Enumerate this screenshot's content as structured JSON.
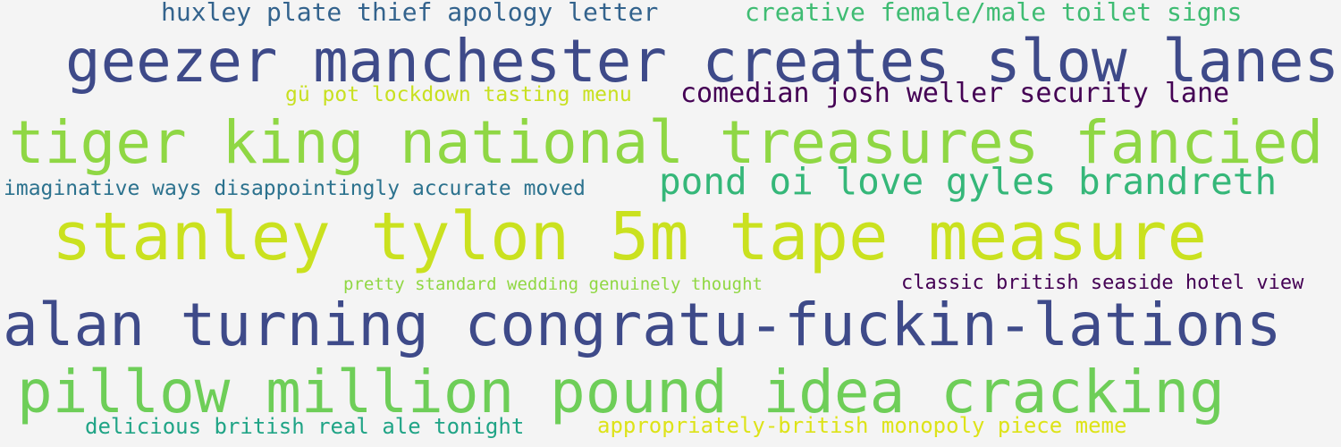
{
  "word_cloud": {
    "background": "#f4f4f4",
    "phrases": [
      {
        "id": "huxley",
        "text": "huxley plate thief apology letter",
        "color": "#33638d"
      },
      {
        "id": "creative",
        "text": "creative female/male toilet signs",
        "color": "#3fbc73"
      },
      {
        "id": "geezer",
        "text": "geezer manchester creates slow lanes",
        "color": "#3e4a89"
      },
      {
        "id": "gu",
        "text": "gü pot lockdown tasting menu",
        "color": "#c8e020"
      },
      {
        "id": "comedian",
        "text": "comedian josh weller security lane",
        "color": "#440154"
      },
      {
        "id": "tiger",
        "text": "tiger king national treasures fancied",
        "color": "#8fd744"
      },
      {
        "id": "imaginative",
        "text": "imaginative ways disappointingly accurate moved",
        "color": "#2c728e"
      },
      {
        "id": "pond",
        "text": "pond oi love gyles brandreth",
        "color": "#35b779"
      },
      {
        "id": "stanley",
        "text": "stanley tylon 5m tape measure",
        "color": "#cae11f"
      },
      {
        "id": "pretty",
        "text": "pretty standard wedding genuinely thought",
        "color": "#90d743"
      },
      {
        "id": "classic",
        "text": "classic british seaside hotel view",
        "color": "#440154"
      },
      {
        "id": "alan",
        "text": "alan turning congratu-fuckin-lations",
        "color": "#3e4a89"
      },
      {
        "id": "pillow",
        "text": "pillow million pound idea cracking",
        "color": "#6ece58"
      },
      {
        "id": "delicious",
        "text": "delicious british real ale tonight",
        "color": "#20a486"
      },
      {
        "id": "appropriately",
        "text": "appropriately-british monopoly piece meme",
        "color": "#dde318"
      }
    ]
  }
}
